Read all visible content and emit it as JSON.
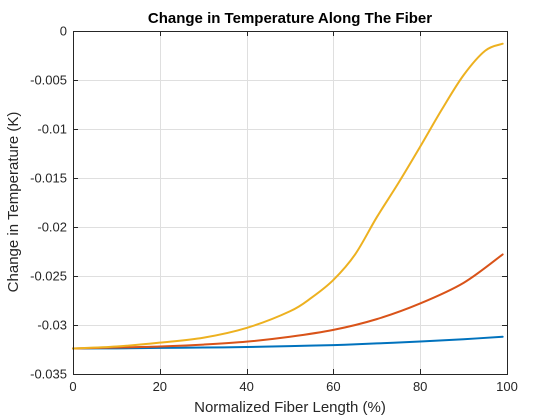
{
  "chart_data": {
    "type": "line",
    "title": "Change in Temperature Along The Fiber",
    "xlabel": "Normalized Fiber Length (%)",
    "ylabel": "Change in Temperature (K)",
    "xlim": [
      0,
      100
    ],
    "ylim": [
      -0.035,
      0
    ],
    "xticks": [
      0,
      20,
      40,
      60,
      80,
      100
    ],
    "xtick_labels": [
      "0",
      "20",
      "40",
      "60",
      "80",
      "100"
    ],
    "yticks": [
      0,
      -0.005,
      -0.01,
      -0.015,
      -0.02,
      -0.025,
      -0.03,
      -0.035
    ],
    "ytick_labels": [
      "0",
      "-0.005",
      "-0.01",
      "-0.015",
      "-0.02",
      "-0.025",
      "-0.03",
      "-0.035"
    ],
    "grid": true,
    "box": true,
    "colors": {
      "axes": "#262626",
      "grid": "#dfdfdf",
      "background": "#ffffff"
    },
    "series": [
      {
        "color": "#0072BD",
        "x": [
          0,
          10,
          20,
          30,
          40,
          50,
          60,
          70,
          80,
          90,
          99
        ],
        "y": [
          -0.0324,
          -0.03238,
          -0.03234,
          -0.0323,
          -0.03225,
          -0.03215,
          -0.03205,
          -0.03188,
          -0.03168,
          -0.03145,
          -0.0312
        ]
      },
      {
        "color": "#D95319",
        "x": [
          0,
          10,
          20,
          30,
          40,
          50,
          60,
          70,
          80,
          90,
          99
        ],
        "y": [
          -0.0324,
          -0.0323,
          -0.0322,
          -0.032,
          -0.0317,
          -0.0312,
          -0.0305,
          -0.0294,
          -0.0278,
          -0.0257,
          -0.0228
        ]
      },
      {
        "color": "#EDB120",
        "x": [
          0,
          10,
          20,
          30,
          40,
          50,
          55,
          60,
          65,
          70,
          75,
          80,
          85,
          90,
          95,
          99
        ],
        "y": [
          -0.0324,
          -0.0322,
          -0.0318,
          -0.0313,
          -0.0303,
          -0.0286,
          -0.0272,
          -0.0254,
          -0.0228,
          -0.019,
          -0.0155,
          -0.0118,
          -0.008,
          -0.0045,
          -0.002,
          -0.0013
        ]
      }
    ]
  }
}
